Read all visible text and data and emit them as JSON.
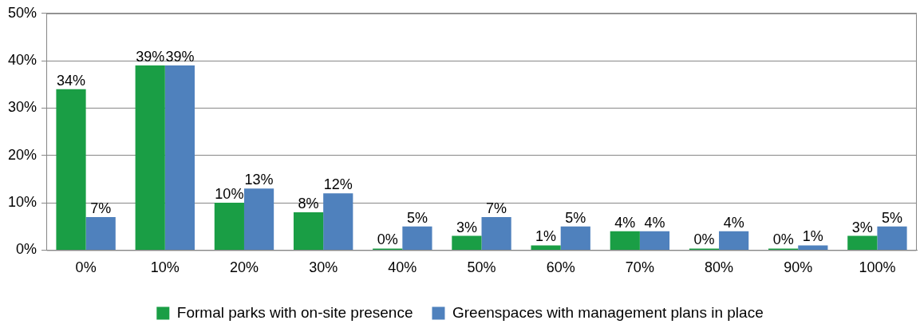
{
  "chart_data": {
    "type": "bar",
    "categories": [
      "0%",
      "10%",
      "20%",
      "30%",
      "40%",
      "50%",
      "60%",
      "70%",
      "80%",
      "90%",
      "100%"
    ],
    "series": [
      {
        "name": "Formal parks with on-site presence",
        "color": "#1a9e45",
        "values": [
          34,
          39,
          10,
          8,
          0,
          3,
          1,
          4,
          0,
          0,
          3
        ],
        "value_labels": [
          "34%",
          "39%",
          "10%",
          "8%",
          "0%",
          "3%",
          "1%",
          "4%",
          "0%",
          "0%",
          "3%"
        ]
      },
      {
        "name": "Greenspaces with management plans in place",
        "color": "#4f81bd",
        "values": [
          7,
          39,
          13,
          12,
          5,
          7,
          5,
          4,
          4,
          1,
          5
        ],
        "value_labels": [
          "7%",
          "39%",
          "13%",
          "12%",
          "5%",
          "7%",
          "5%",
          "4%",
          "4%",
          "1%",
          "5%"
        ]
      }
    ],
    "ylim": [
      0,
      50
    ],
    "yticks": [
      {
        "value": 0,
        "label": "0%"
      },
      {
        "value": 10,
        "label": "10%"
      },
      {
        "value": 20,
        "label": "20%"
      },
      {
        "value": 30,
        "label": "30%"
      },
      {
        "value": 40,
        "label": "40%"
      },
      {
        "value": 50,
        "label": "50%"
      }
    ],
    "grid": "y",
    "legend": "bottom"
  }
}
